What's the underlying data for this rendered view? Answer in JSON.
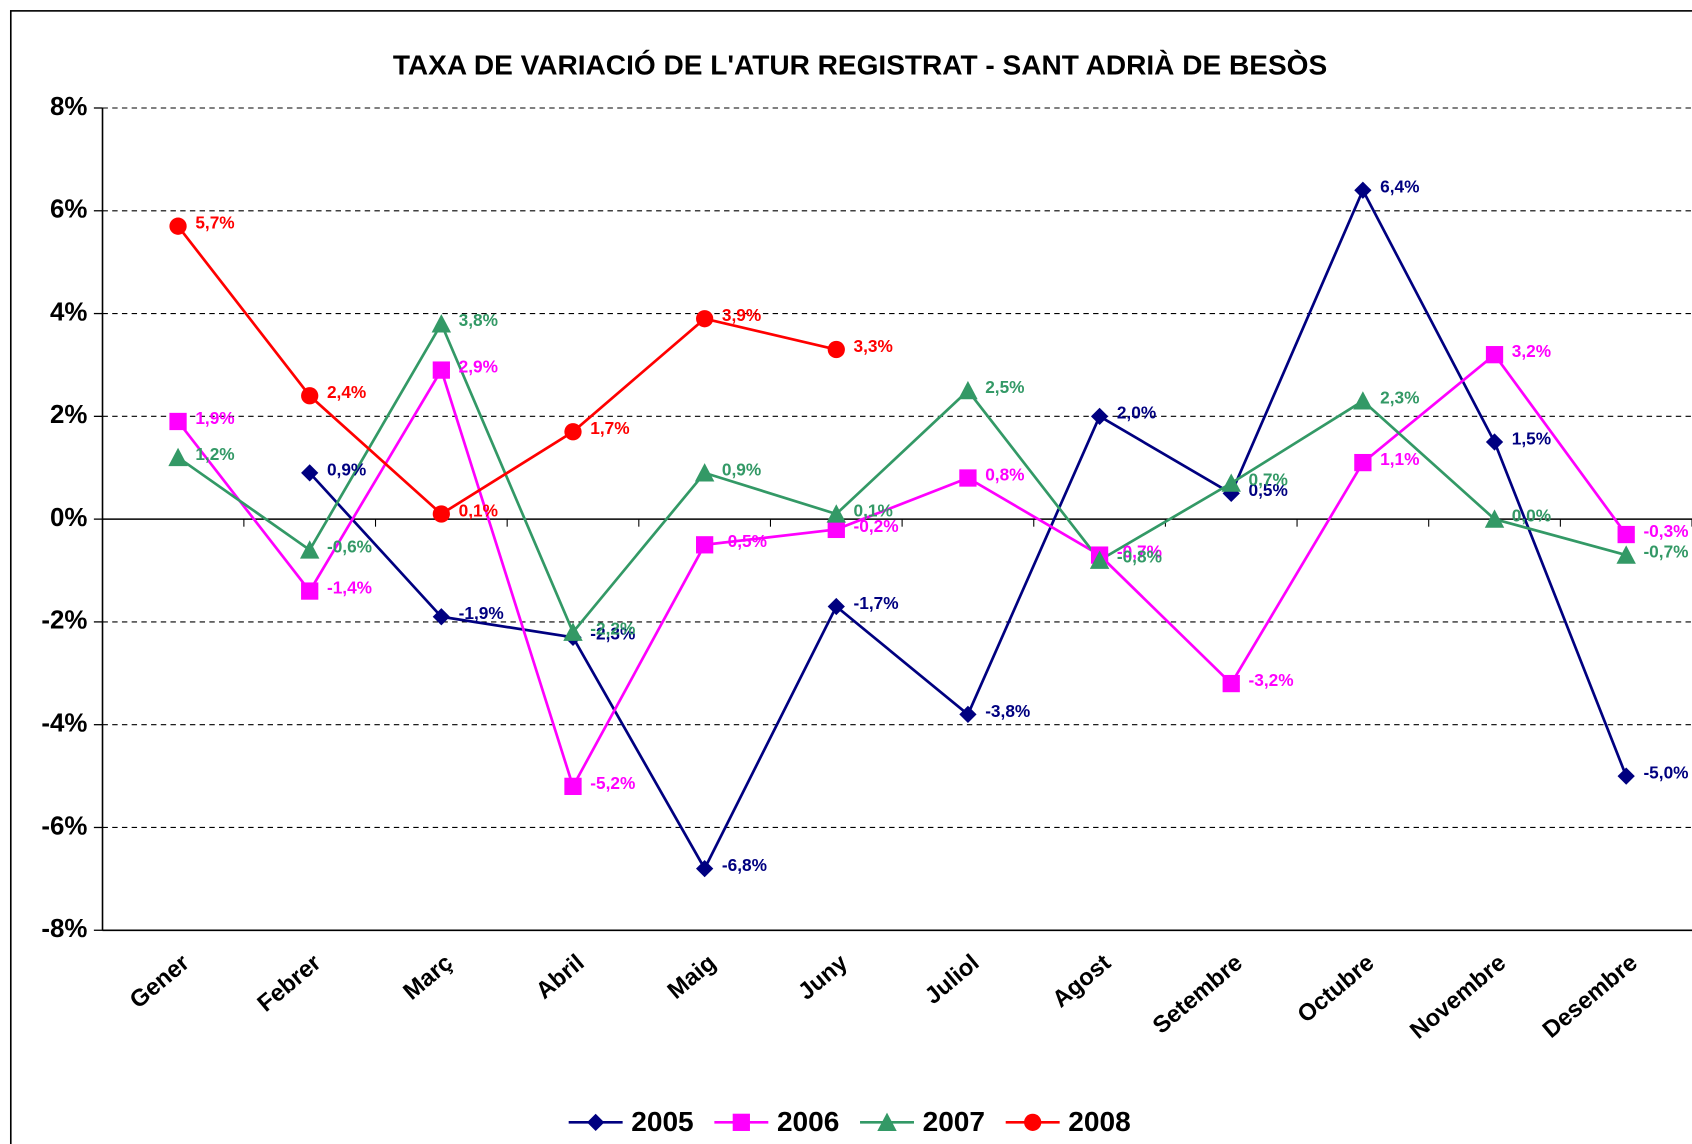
{
  "chart_data": {
    "type": "line",
    "title": "TAXA DE VARIACIÓ DE L'ATUR REGISTRAT - SANT ADRIÀ DE BESÒS",
    "categories": [
      "Gener",
      "Febrer",
      "Març",
      "Abril",
      "Maig",
      "Juny",
      "Juliol",
      "Agost",
      "Setembre",
      "Octubre",
      "Novembre",
      "Desembre"
    ],
    "series": [
      {
        "name": "2005",
        "color": "#000080",
        "marker": "diamond",
        "values": [
          null,
          0.9,
          -1.9,
          -2.3,
          -6.8,
          -1.7,
          -3.8,
          2.0,
          0.5,
          6.4,
          1.5,
          -5.0
        ],
        "value_labels": [
          null,
          "0,9%",
          "-1,9%",
          "-2,3%",
          "-6,8%",
          "-1,7%",
          "-3,8%",
          "2,0%",
          "0,5%",
          "6,4%",
          "1,5%",
          "-5,0%"
        ]
      },
      {
        "name": "2006",
        "color": "#ff00ff",
        "marker": "square",
        "values": [
          1.9,
          -1.4,
          2.9,
          -5.2,
          -0.5,
          -0.2,
          0.8,
          -0.7,
          -3.2,
          1.1,
          3.2,
          -0.3
        ],
        "value_labels": [
          "1,9%",
          "-1,4%",
          "2,9%",
          "-5,2%",
          "-0,5%",
          "-0,2%",
          "0,8%",
          "-0,7%",
          "-3,2%",
          "1,1%",
          "3,2%",
          "-0,3%"
        ]
      },
      {
        "name": "2007",
        "color": "#339966",
        "marker": "triangle",
        "values": [
          1.2,
          -0.6,
          3.8,
          -2.2,
          0.9,
          0.1,
          2.5,
          -0.8,
          0.7,
          2.3,
          0.0,
          -0.7
        ],
        "value_labels": [
          "1,2%",
          "-0,6%",
          "3,8%",
          "-2,2%",
          "0,9%",
          "0,1%",
          "2,5%",
          "-0,8%",
          "0,7%",
          "2,3%",
          "0,0%",
          "-0,7%"
        ]
      },
      {
        "name": "2008",
        "color": "#ff0000",
        "marker": "circle",
        "values": [
          5.7,
          2.4,
          0.1,
          1.7,
          3.9,
          3.3,
          null,
          null,
          null,
          null,
          null,
          null
        ],
        "value_labels": [
          "5,7%",
          "2,4%",
          "0,1%",
          "1,7%",
          "3,9%",
          "3,3%",
          null,
          null,
          null,
          null,
          null,
          null
        ]
      }
    ],
    "ylim": [
      -8,
      8
    ],
    "yticks": [
      {
        "value": -8,
        "label": "-8%"
      },
      {
        "value": -6,
        "label": "-6%"
      },
      {
        "value": -4,
        "label": "-4%"
      },
      {
        "value": -2,
        "label": "-2%"
      },
      {
        "value": 0,
        "label": "0%"
      },
      {
        "value": 2,
        "label": "2%"
      },
      {
        "value": 4,
        "label": "4%"
      },
      {
        "value": 6,
        "label": "6%"
      },
      {
        "value": 8,
        "label": "8%"
      }
    ],
    "grid": true,
    "legend": "bottom"
  }
}
